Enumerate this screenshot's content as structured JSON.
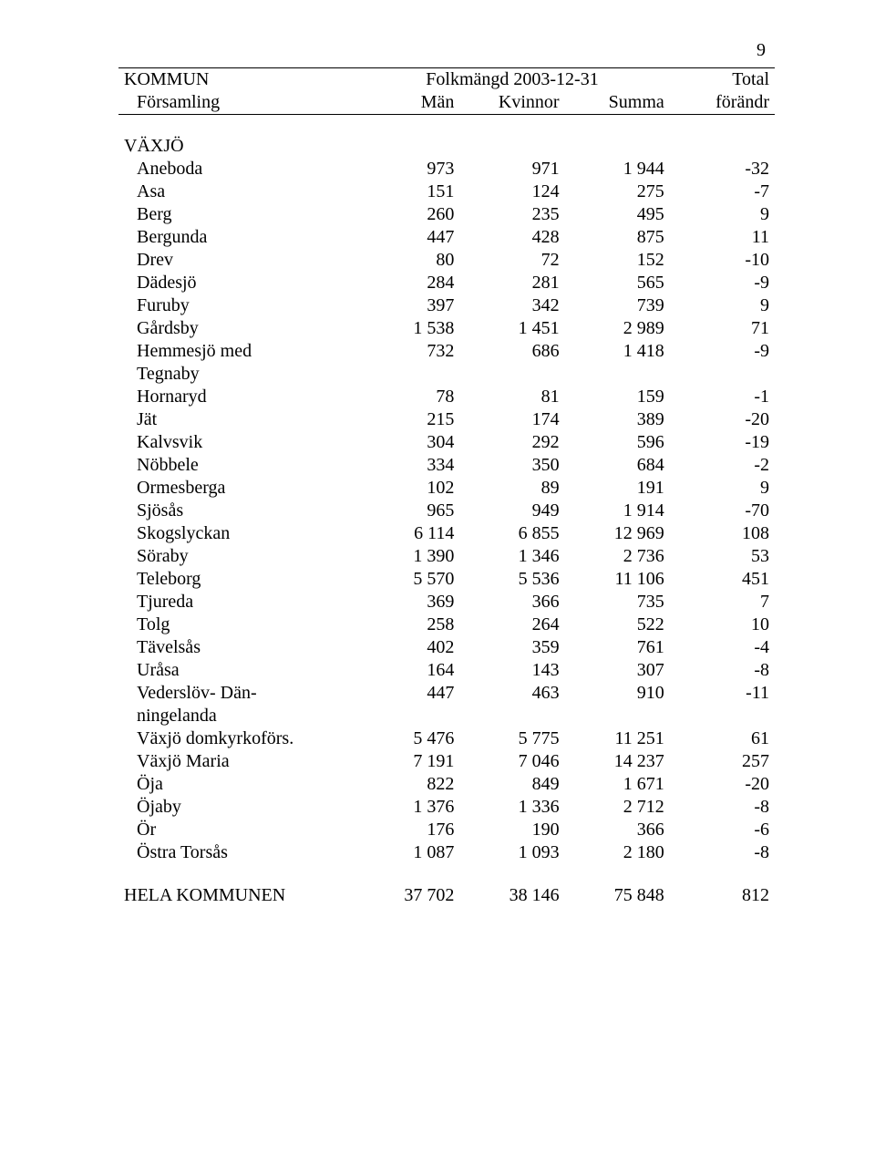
{
  "page_number": "9",
  "header": {
    "col1_a": "KOMMUN",
    "col1_b": "Församling",
    "mid_a": "Folkmängd 2003-12-31",
    "col2_b": "Män",
    "col3_b": "Kvinnor",
    "col4_b": "Summa",
    "col5_a": "Total",
    "col5_b": "förändr"
  },
  "section_label": "VÄXJÖ",
  "rows": [
    {
      "name": "Aneboda",
      "m": "973",
      "k": "971",
      "s": "1 944",
      "f": "-32",
      "indent": true
    },
    {
      "name": "Asa",
      "m": "151",
      "k": "124",
      "s": "275",
      "f": "-7",
      "indent": true
    },
    {
      "name": "Berg",
      "m": "260",
      "k": "235",
      "s": "495",
      "f": "9",
      "indent": true
    },
    {
      "name": "Bergunda",
      "m": "447",
      "k": "428",
      "s": "875",
      "f": "11",
      "indent": true
    },
    {
      "name": "Drev",
      "m": "80",
      "k": "72",
      "s": "152",
      "f": "-10",
      "indent": true
    },
    {
      "name": "Dädesjö",
      "m": "284",
      "k": "281",
      "s": "565",
      "f": "-9",
      "indent": true
    },
    {
      "name": "Furuby",
      "m": "397",
      "k": "342",
      "s": "739",
      "f": "9",
      "indent": true
    },
    {
      "name": "Gårdsby",
      "m": "1 538",
      "k": "1 451",
      "s": "2 989",
      "f": "71",
      "indent": true
    },
    {
      "name": "Hemmesjö med",
      "m": "732",
      "k": "686",
      "s": "1 418",
      "f": "-9",
      "indent": true,
      "cont": "Tegnaby"
    },
    {
      "name": "Hornaryd",
      "m": "78",
      "k": "81",
      "s": "159",
      "f": "-1",
      "indent": true
    },
    {
      "name": "Jät",
      "m": "215",
      "k": "174",
      "s": "389",
      "f": "-20",
      "indent": true
    },
    {
      "name": "Kalvsvik",
      "m": "304",
      "k": "292",
      "s": "596",
      "f": "-19",
      "indent": true
    },
    {
      "name": "Nöbbele",
      "m": "334",
      "k": "350",
      "s": "684",
      "f": "-2",
      "indent": true
    },
    {
      "name": "Ormesberga",
      "m": "102",
      "k": "89",
      "s": "191",
      "f": "9",
      "indent": true
    },
    {
      "name": "Sjösås",
      "m": "965",
      "k": "949",
      "s": "1 914",
      "f": "-70",
      "indent": true
    },
    {
      "name": "Skogslyckan",
      "m": "6 114",
      "k": "6 855",
      "s": "12 969",
      "f": "108",
      "indent": true
    },
    {
      "name": "Söraby",
      "m": "1 390",
      "k": "1 346",
      "s": "2 736",
      "f": "53",
      "indent": true
    },
    {
      "name": "Teleborg",
      "m": "5 570",
      "k": "5 536",
      "s": "11 106",
      "f": "451",
      "indent": true
    },
    {
      "name": "Tjureda",
      "m": "369",
      "k": "366",
      "s": "735",
      "f": "7",
      "indent": true
    },
    {
      "name": "Tolg",
      "m": "258",
      "k": "264",
      "s": "522",
      "f": "10",
      "indent": true
    },
    {
      "name": "Tävelsås",
      "m": "402",
      "k": "359",
      "s": "761",
      "f": "-4",
      "indent": true
    },
    {
      "name": "Uråsa",
      "m": "164",
      "k": "143",
      "s": "307",
      "f": "-8",
      "indent": true
    },
    {
      "name": "Vederslöv- Dän-",
      "m": "447",
      "k": "463",
      "s": "910",
      "f": "-11",
      "indent": true,
      "cont": "ningelanda"
    },
    {
      "name": "Växjö domkyrkoförs.",
      "m": "5 476",
      "k": "5 775",
      "s": "11 251",
      "f": "61",
      "indent": true
    },
    {
      "name": "Växjö Maria",
      "m": "7 191",
      "k": "7 046",
      "s": "14 237",
      "f": "257",
      "indent": true
    },
    {
      "name": "Öja",
      "m": "822",
      "k": "849",
      "s": "1 671",
      "f": "-20",
      "indent": true
    },
    {
      "name": "Öjaby",
      "m": "1 376",
      "k": "1 336",
      "s": "2 712",
      "f": "-8",
      "indent": true
    },
    {
      "name": "Ör",
      "m": "176",
      "k": "190",
      "s": "366",
      "f": "-6",
      "indent": true
    },
    {
      "name": "Östra Torsås",
      "m": "1 087",
      "k": "1 093",
      "s": "2 180",
      "f": "-8",
      "indent": true
    }
  ],
  "total": {
    "name": "HELA KOMMUNEN",
    "m": "37 702",
    "k": "38 146",
    "s": "75 848",
    "f": "812"
  }
}
